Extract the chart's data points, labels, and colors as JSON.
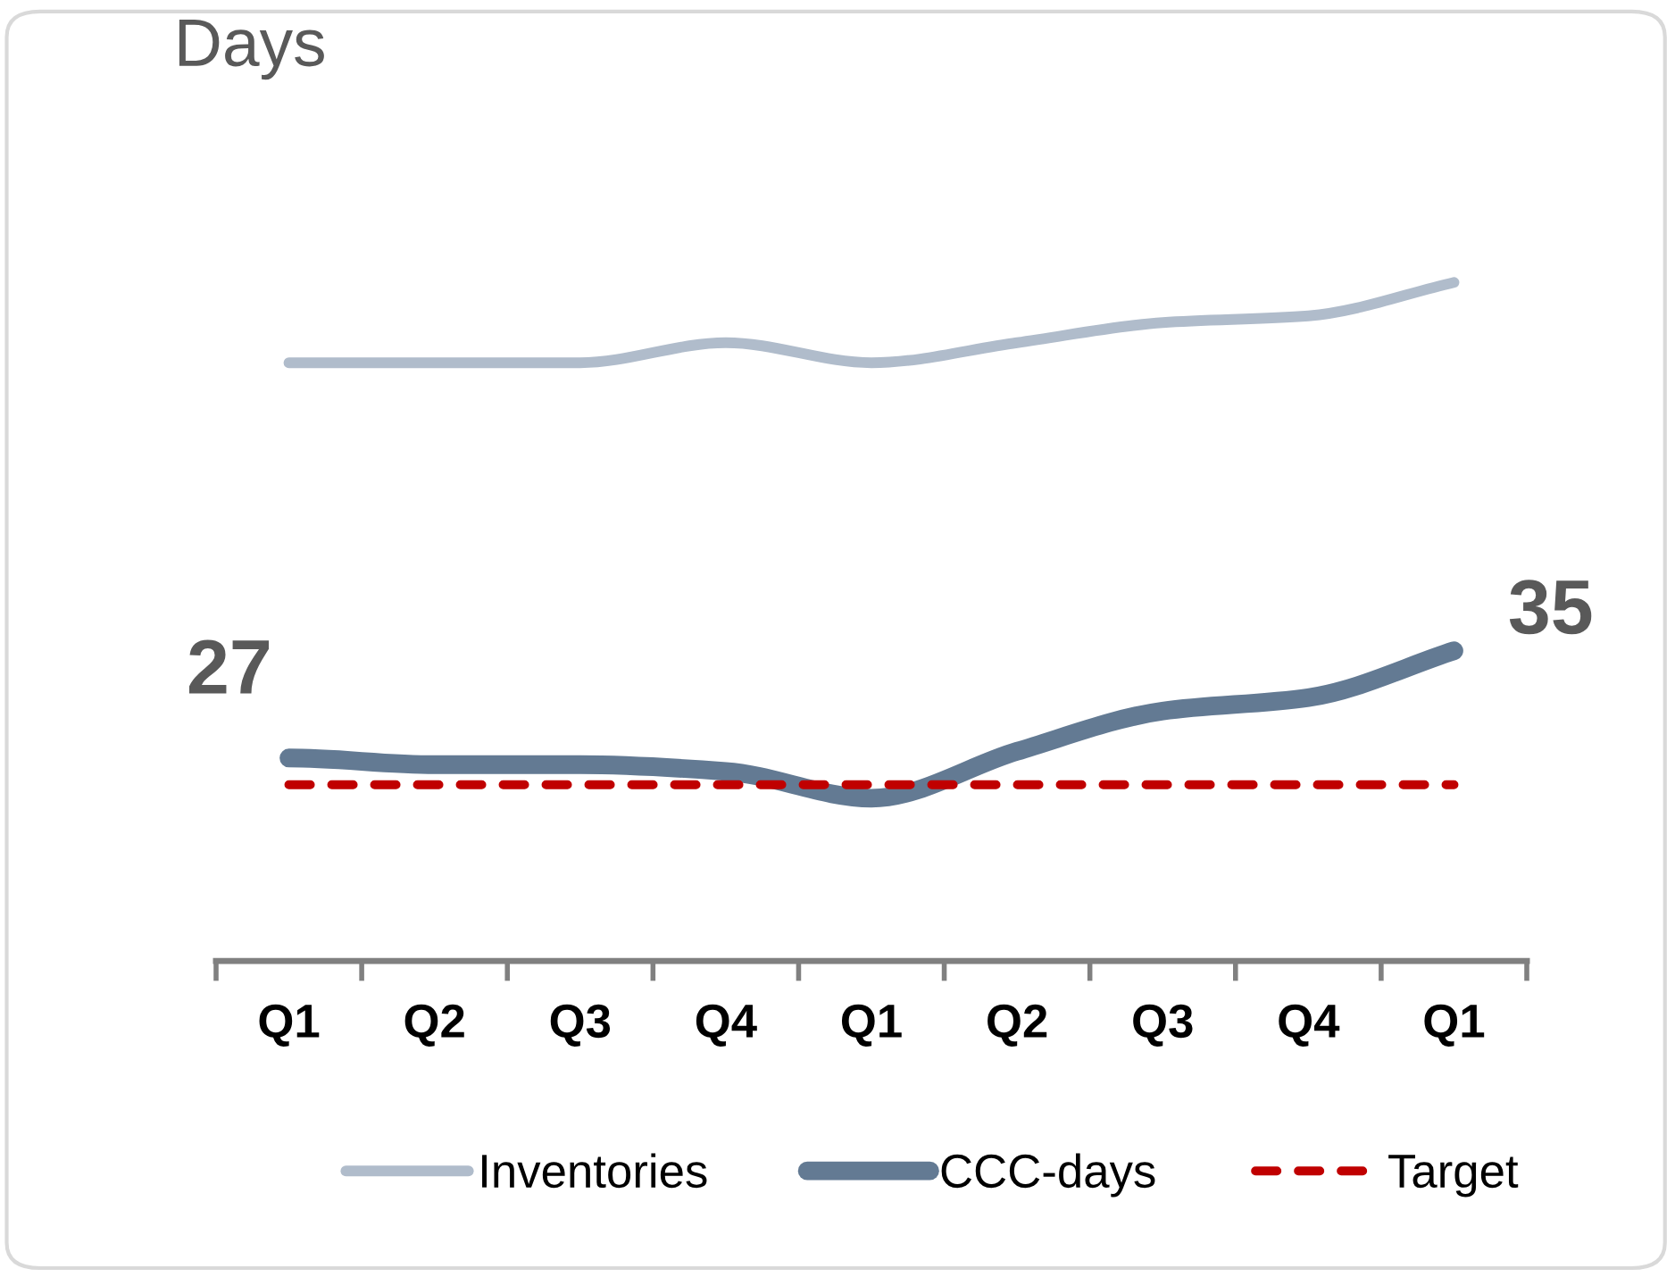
{
  "chart_data": {
    "type": "line",
    "ylabel": "Days",
    "categories": [
      "Q1",
      "Q2",
      "Q3",
      "Q4",
      "Q1",
      "Q2",
      "Q3",
      "Q4",
      "Q1"
    ],
    "series": [
      {
        "name": "Inventories",
        "color": "#b0bccb",
        "values": [
          56.5,
          56.5,
          56.5,
          58,
          56.5,
          58,
          59.5,
          60,
          62.5
        ]
      },
      {
        "name": "CCC-days",
        "color": "#637a93",
        "values": [
          27,
          26.5,
          26.5,
          26,
          24,
          27.5,
          30.5,
          31.5,
          35
        ],
        "value_labels": [
          "27",
          null,
          null,
          null,
          null,
          null,
          null,
          null,
          "35"
        ]
      },
      {
        "name": "Target",
        "color": "#c00000",
        "values": [
          25,
          25,
          25,
          25,
          25,
          25,
          25,
          25,
          25
        ],
        "line_style": "dashed"
      }
    ],
    "tick_labels": "x",
    "legend": "bottom"
  }
}
